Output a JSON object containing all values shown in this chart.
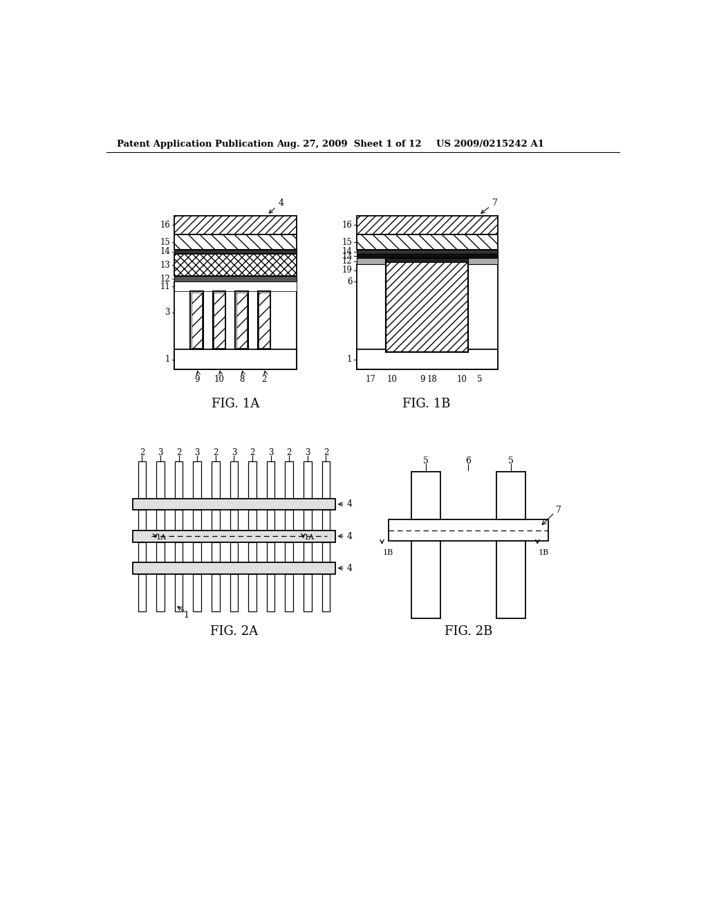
{
  "bg_color": "#ffffff",
  "header_text1": "Patent Application Publication",
  "header_text2": "Aug. 27, 2009  Sheet 1 of 12",
  "header_text3": "US 2009/0215242 A1",
  "fig1a_label": "FIG. 1A",
  "fig1b_label": "FIG. 1B",
  "fig2a_label": "FIG. 2A",
  "fig2b_label": "FIG. 2B"
}
